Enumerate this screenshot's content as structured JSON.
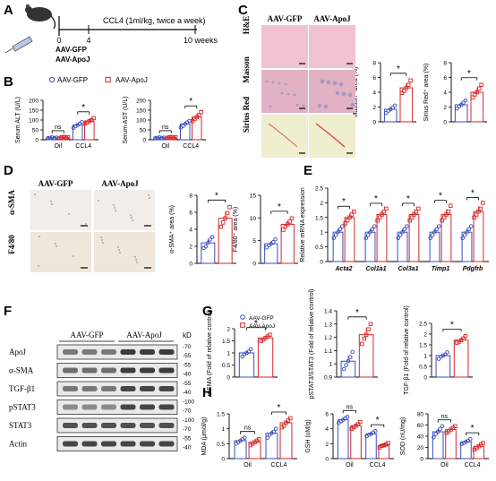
{
  "panels": {
    "A": {
      "letter": "A",
      "treatment": "CCL4 (1ml/kg, twice a week)",
      "ticks": [
        "0",
        "4",
        "10 weeks"
      ],
      "groups": [
        "AAV-GFP",
        "AAV-ApoJ"
      ]
    },
    "B": {
      "letter": "B"
    },
    "C": {
      "letter": "C",
      "columns": [
        "AAV-GFP",
        "AAV-ApoJ"
      ],
      "rows": [
        "H&E",
        "Masson",
        "Sirius Red"
      ],
      "tissue_colors": [
        "#f1c3d1",
        "#e3b1c4",
        "#efefcf"
      ]
    },
    "D": {
      "letter": "D",
      "columns": [
        "AAV-GFP",
        "AAV-ApoJ"
      ],
      "rows": [
        "α-SMA",
        "F4/80"
      ],
      "tissue_colors": [
        "#f2ede8",
        "#efe7dc"
      ]
    },
    "E": {
      "letter": "E"
    },
    "F": {
      "letter": "F",
      "groups": [
        "AAV-GFP",
        "AAV-ApoJ"
      ],
      "kd_label": "kD",
      "blots": [
        {
          "label": "ApoJ",
          "markers": [
            "-70",
            "-55"
          ],
          "intensity": [
            0.55,
            0.55,
            0.55,
            0.85,
            0.85,
            0.85
          ]
        },
        {
          "label": "α-SMA",
          "markers": [
            "-55",
            "-40"
          ],
          "intensity": [
            0.6,
            0.6,
            0.6,
            0.85,
            0.85,
            0.85
          ]
        },
        {
          "label": "TGF-β1",
          "markers": [
            "-55",
            "-40"
          ],
          "intensity": [
            0.55,
            0.55,
            0.55,
            0.8,
            0.8,
            0.8
          ]
        },
        {
          "label": "pSTAT3",
          "markers": [
            "-100",
            "-70"
          ],
          "intensity": [
            0.45,
            0.45,
            0.45,
            0.8,
            0.8,
            0.8
          ]
        },
        {
          "label": "STAT3",
          "markers": [
            "-100",
            "-70"
          ],
          "intensity": [
            0.75,
            0.75,
            0.75,
            0.75,
            0.75,
            0.75
          ]
        },
        {
          "label": "Actin",
          "markers": [
            "-55",
            "-40"
          ],
          "intensity": [
            0.8,
            0.8,
            0.8,
            0.8,
            0.8,
            0.8
          ]
        }
      ]
    },
    "G": {
      "letter": "G"
    },
    "H": {
      "letter": "H"
    }
  },
  "colors": {
    "gfp": "#3b4cc0",
    "apoj": "#d62728"
  },
  "chart_data": [
    {
      "id": "B-ALT",
      "type": "bar",
      "panel": "B",
      "ylabel": "Serum ALT (U/L)",
      "ylim": [
        0,
        200
      ],
      "yticks": [
        0,
        50,
        100,
        150,
        200
      ],
      "categories": [
        "Oil",
        "CCL4"
      ],
      "legend": [
        "AAV-GFP",
        "AAV-ApoJ"
      ],
      "series": [
        {
          "name": "AAV-GFP",
          "values": [
            10,
            75
          ],
          "points": [
            [
              8,
              10,
              12,
              9,
              11
            ],
            [
              60,
              68,
              75,
              82,
              90
            ]
          ]
        },
        {
          "name": "AAV-ApoJ",
          "values": [
            12,
            95
          ],
          "points": [
            [
              9,
              12,
              14,
              11,
              13
            ],
            [
              82,
              88,
              95,
              100,
              110
            ]
          ]
        }
      ],
      "annotations": [
        {
          "text": "ns",
          "group": 0
        },
        {
          "text": "*",
          "group": 1
        }
      ]
    },
    {
      "id": "B-AST",
      "type": "bar",
      "panel": "B",
      "ylabel": "Serum AST (U/L)",
      "ylim": [
        0,
        200
      ],
      "yticks": [
        0,
        50,
        100,
        150,
        200
      ],
      "categories": [
        "Oil",
        "CCL4"
      ],
      "series": [
        {
          "name": "AAV-GFP",
          "values": [
            10,
            80
          ],
          "points": [
            [
              8,
              10,
              12,
              9,
              11
            ],
            [
              62,
              70,
              80,
              88,
              95
            ]
          ]
        },
        {
          "name": "AAV-ApoJ",
          "values": [
            12,
            115
          ],
          "points": [
            [
              9,
              12,
              14,
              11,
              13
            ],
            [
              95,
              105,
              115,
              125,
              140
            ]
          ]
        }
      ],
      "annotations": [
        {
          "text": "ns",
          "group": 0
        },
        {
          "text": "*",
          "group": 1
        }
      ]
    },
    {
      "id": "C-Masson",
      "type": "bar",
      "panel": "C",
      "ylabel": "Masson⁺ area (%)",
      "ylim": [
        0,
        8
      ],
      "yticks": [
        0,
        2,
        4,
        6,
        8
      ],
      "categories": [
        "AAV-GFP",
        "AAV-ApoJ"
      ],
      "values": [
        1.7,
        4.6
      ],
      "points": [
        [
          1.2,
          1.5,
          1.7,
          1.9,
          2.2
        ],
        [
          3.9,
          4.2,
          4.6,
          5.0,
          5.6
        ]
      ],
      "annotations": [
        {
          "text": "*"
        }
      ]
    },
    {
      "id": "C-Sirius",
      "type": "bar",
      "panel": "C",
      "ylabel": "Sirius Red⁺ area (%)",
      "ylim": [
        0,
        8
      ],
      "yticks": [
        0,
        2,
        4,
        6,
        8
      ],
      "categories": [
        "AAV-GFP",
        "AAV-ApoJ"
      ],
      "values": [
        2.3,
        4.0
      ],
      "points": [
        [
          1.8,
          2.1,
          2.3,
          2.6,
          2.9
        ],
        [
          3.3,
          3.7,
          4.0,
          4.5,
          5.0
        ]
      ],
      "annotations": [
        {
          "text": "*"
        }
      ]
    },
    {
      "id": "D-SMA",
      "type": "bar",
      "panel": "D",
      "ylabel": "α-SMA⁺ area (%)",
      "ylim": [
        0,
        8
      ],
      "yticks": [
        0,
        2,
        4,
        6,
        8
      ],
      "categories": [
        "AAV-GFP",
        "AAV-ApoJ"
      ],
      "values": [
        2.4,
        5.3
      ],
      "points": [
        [
          1.8,
          2.0,
          2.4,
          2.8,
          3.1
        ],
        [
          4.3,
          4.8,
          5.3,
          5.9,
          6.6
        ]
      ],
      "annotations": [
        {
          "text": "*"
        }
      ]
    },
    {
      "id": "D-F480",
      "type": "bar",
      "panel": "D",
      "ylabel": "F4/80⁺ area (%)",
      "ylim": [
        0,
        15
      ],
      "yticks": [
        0,
        5,
        10,
        15
      ],
      "categories": [
        "AAV-GFP",
        "AAV-ApoJ"
      ],
      "values": [
        4.3,
        8.6
      ],
      "points": [
        [
          3.5,
          4.0,
          4.3,
          4.7,
          5.3
        ],
        [
          7.4,
          8.1,
          8.6,
          9.2,
          9.9
        ]
      ],
      "annotations": [
        {
          "text": "*"
        }
      ]
    },
    {
      "id": "E",
      "type": "bar",
      "panel": "E",
      "ylabel": "Relative mRNA expression",
      "ylim": [
        0,
        2.5
      ],
      "yticks": [
        0.0,
        0.5,
        1.0,
        1.5,
        2.0,
        2.5
      ],
      "categories": [
        "Acta2",
        "Col1a1",
        "Col3a1",
        "Timp1",
        "Pdgfrb"
      ],
      "series": [
        {
          "name": "AAV-GFP",
          "values": [
            1.0,
            1.0,
            1.0,
            1.0,
            1.0
          ],
          "points": [
            [
              0.8,
              0.9,
              1.0,
              1.1,
              1.2
            ],
            [
              0.8,
              0.9,
              1.0,
              1.1,
              1.2
            ],
            [
              0.8,
              0.9,
              1.0,
              1.1,
              1.2
            ],
            [
              0.8,
              0.9,
              1.0,
              1.1,
              1.2
            ],
            [
              0.8,
              0.9,
              1.0,
              1.1,
              1.2
            ]
          ]
        },
        {
          "name": "AAV-ApoJ",
          "values": [
            1.5,
            1.6,
            1.6,
            1.6,
            1.7
          ],
          "points": [
            [
              1.3,
              1.4,
              1.5,
              1.6,
              1.7
            ],
            [
              1.4,
              1.5,
              1.6,
              1.7,
              1.8
            ],
            [
              1.4,
              1.5,
              1.6,
              1.7,
              1.8
            ],
            [
              1.4,
              1.5,
              1.6,
              1.7,
              1.9
            ],
            [
              1.5,
              1.6,
              1.7,
              1.8,
              2.0
            ]
          ]
        }
      ],
      "annotations": [
        {
          "text": "*",
          "group": 0
        },
        {
          "text": "*",
          "group": 1
        },
        {
          "text": "*",
          "group": 2
        },
        {
          "text": "*",
          "group": 3
        },
        {
          "text": "*",
          "group": 4
        }
      ]
    },
    {
      "id": "G-SMA",
      "type": "bar",
      "panel": "G",
      "ylabel": "α-SMA (Fold of relative control)",
      "ylim": [
        0,
        2.0
      ],
      "yticks": [
        0.0,
        0.5,
        1.0,
        1.5,
        2.0
      ],
      "categories": [
        "AAV-GFP",
        "AAV-ApoJ"
      ],
      "legend": [
        "AAV-GFP",
        "AAV-ApoJ"
      ],
      "values": [
        1.0,
        1.62
      ],
      "points": [
        [
          0.85,
          0.95,
          1.0,
          1.05,
          1.15
        ],
        [
          1.5,
          1.55,
          1.62,
          1.68,
          1.75
        ]
      ],
      "annotations": [
        {
          "text": "*"
        }
      ]
    },
    {
      "id": "G-pSTAT3",
      "type": "bar",
      "panel": "G",
      "ylabel": "pSTAT3/STAT3 (Fold of relative control)",
      "ylim": [
        0.9,
        1.4
      ],
      "yticks": [
        0.9,
        1.0,
        1.1,
        1.2,
        1.3,
        1.4
      ],
      "categories": [
        "AAV-GFP",
        "AAV-ApoJ"
      ],
      "values": [
        1.02,
        1.22
      ],
      "points": [
        [
          0.96,
          0.99,
          1.02,
          1.05,
          1.09
        ],
        [
          1.15,
          1.19,
          1.22,
          1.26,
          1.3
        ]
      ],
      "annotations": [
        {
          "text": "*"
        }
      ]
    },
    {
      "id": "G-TGF",
      "type": "bar",
      "panel": "G",
      "ylabel": "TGF-β1 (Fold of relative control)",
      "ylim": [
        0,
        2.5
      ],
      "yticks": [
        0.0,
        0.5,
        1.0,
        1.5,
        2.0,
        2.5
      ],
      "categories": [
        "AAV-GFP",
        "AAV-ApoJ"
      ],
      "values": [
        1.0,
        1.72
      ],
      "points": [
        [
          0.85,
          0.95,
          1.0,
          1.05,
          1.15
        ],
        [
          1.6,
          1.65,
          1.72,
          1.8,
          1.9
        ]
      ],
      "annotations": [
        {
          "text": "*"
        }
      ]
    },
    {
      "id": "H-MDA",
      "type": "bar",
      "panel": "H",
      "ylabel": "MDA (μmol/g)",
      "ylim": [
        0.0,
        1.5
      ],
      "yticks": [
        0.0,
        0.5,
        1.0,
        1.5
      ],
      "categories": [
        "Oil",
        "CCL4"
      ],
      "series": [
        {
          "name": "AAV-GFP",
          "values": [
            0.6,
            0.85
          ],
          "points": [
            [
              0.5,
              0.55,
              0.6,
              0.65,
              0.7
            ],
            [
              0.7,
              0.8,
              0.85,
              0.9,
              1.0
            ]
          ]
        },
        {
          "name": "AAV-ApoJ",
          "values": [
            0.55,
            1.2
          ],
          "points": [
            [
              0.45,
              0.5,
              0.55,
              0.6,
              0.65
            ],
            [
              1.05,
              1.1,
              1.2,
              1.28,
              1.35
            ]
          ]
        }
      ],
      "annotations": [
        {
          "text": "ns",
          "group": 0
        },
        {
          "text": "*",
          "group": 1
        }
      ]
    },
    {
      "id": "H-GSH",
      "type": "bar",
      "panel": "H",
      "ylabel": "GSH (uM/g)",
      "ylim": [
        0,
        6
      ],
      "yticks": [
        0,
        2,
        4,
        6
      ],
      "categories": [
        "Oil",
        "CCL4"
      ],
      "series": [
        {
          "name": "AAV-GFP",
          "values": [
            5.2,
            3.3
          ],
          "points": [
            [
              4.8,
              5.0,
              5.2,
              5.4,
              5.6
            ],
            [
              3.0,
              3.2,
              3.3,
              3.5,
              3.7
            ]
          ]
        },
        {
          "name": "AAV-ApoJ",
          "values": [
            4.4,
            1.8
          ],
          "points": [
            [
              4.0,
              4.2,
              4.4,
              4.6,
              4.9
            ],
            [
              1.5,
              1.7,
              1.8,
              1.9,
              2.1
            ]
          ]
        }
      ],
      "annotations": [
        {
          "text": "ns",
          "group": 0
        },
        {
          "text": "*",
          "group": 1
        }
      ]
    },
    {
      "id": "H-SOD",
      "type": "bar",
      "panel": "H",
      "ylabel": "SOD (nU/mg)",
      "ylim": [
        0,
        80
      ],
      "yticks": [
        0,
        20,
        40,
        60,
        80
      ],
      "categories": [
        "Oil",
        "CCL4"
      ],
      "series": [
        {
          "name": "AAV-GFP",
          "values": [
            48,
            30
          ],
          "points": [
            [
              38,
              44,
              48,
              53,
              58
            ],
            [
              26,
              28,
              30,
              32,
              35
            ]
          ]
        },
        {
          "name": "AAV-ApoJ",
          "values": [
            52,
            22
          ],
          "points": [
            [
              46,
              49,
              52,
              55,
              58
            ],
            [
              16,
              19,
              22,
              25,
              28
            ]
          ]
        }
      ],
      "annotations": [
        {
          "text": "ns",
          "group": 0
        },
        {
          "text": "*",
          "group": 1
        }
      ]
    }
  ]
}
